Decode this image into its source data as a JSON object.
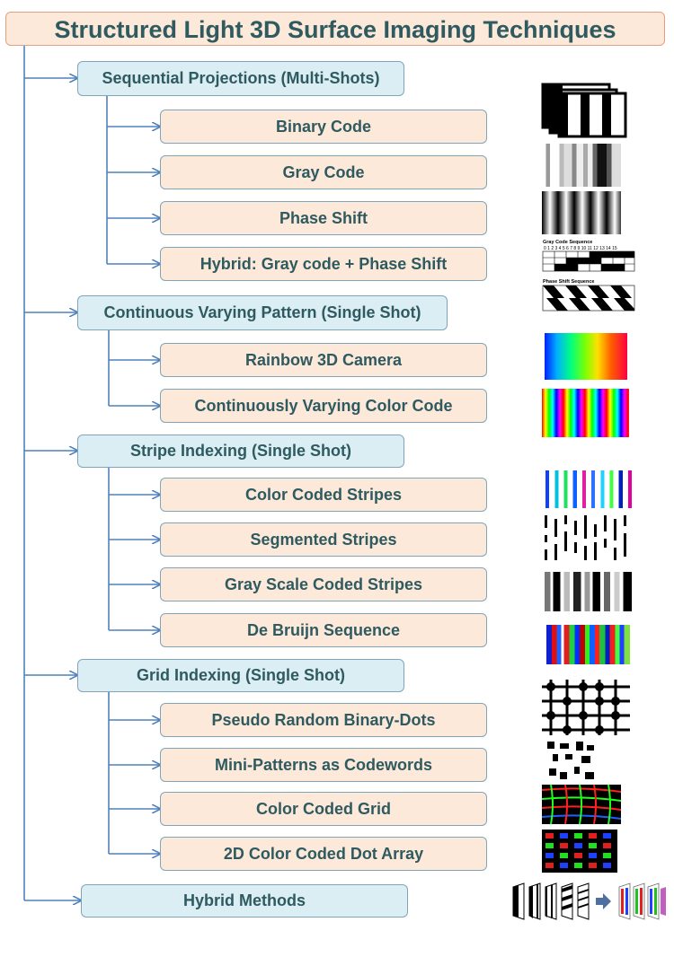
{
  "title": "Structured Light 3D Surface Imaging Techniques",
  "categories": [
    {
      "label": "Sequential Projections (Multi-Shots)",
      "techniques": [
        "Binary Code",
        "Gray Code",
        "Phase Shift",
        "Hybrid: Gray code + Phase Shift"
      ]
    },
    {
      "label": "Continuous Varying Pattern (Single Shot)",
      "techniques": [
        "Rainbow 3D Camera",
        "Continuously Varying Color Code"
      ]
    },
    {
      "label": "Stripe Indexing (Single Shot)",
      "techniques": [
        "Color Coded Stripes",
        "Segmented Stripes",
        "Gray Scale Coded Stripes",
        "De Bruijn Sequence"
      ]
    },
    {
      "label": "Grid Indexing (Single Shot)",
      "techniques": [
        "Pseudo Random Binary-Dots",
        "Mini-Patterns as Codewords",
        "Color Coded Grid",
        "2D Color Coded Dot Array"
      ]
    },
    {
      "label": "Hybrid Methods",
      "techniques": []
    }
  ],
  "thumbnail_labels": {
    "gray_code_sequence": "Gray Code Sequence",
    "phase_shift_sequence": "Phase Shift Sequence"
  },
  "colors": {
    "title_fill": "#fde9d9",
    "category_fill": "#dbeef4",
    "technique_fill": "#fde9d9",
    "text": "#2e5a60",
    "connector": "#4f81bd"
  }
}
